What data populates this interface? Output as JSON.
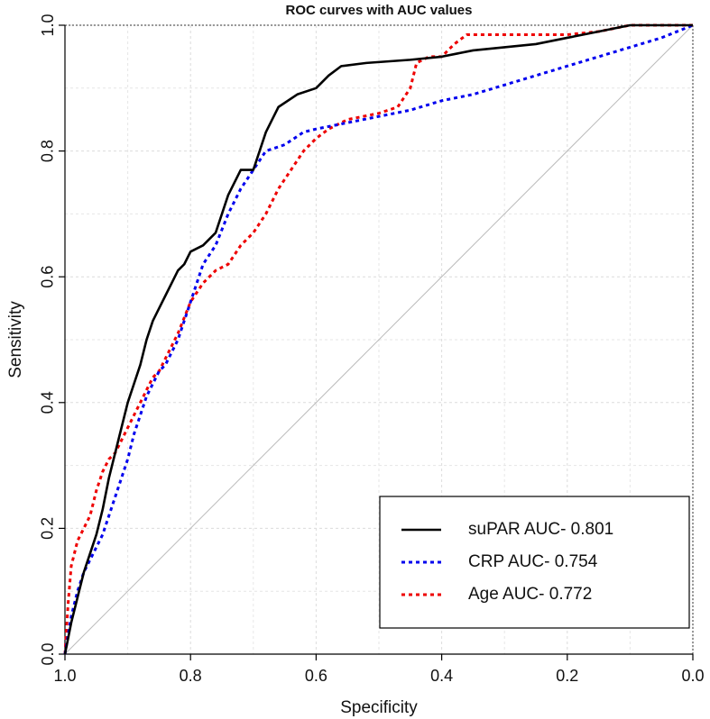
{
  "chart_data": {
    "type": "line",
    "title": "ROC curves with AUC values",
    "xlabel": "Specificity",
    "ylabel": "Sensitivity",
    "xlim": [
      1.0,
      0.0
    ],
    "ylim": [
      0.0,
      1.0
    ],
    "x_ticks": [
      "1.0",
      "0.8",
      "0.6",
      "0.4",
      "0.2",
      "0.0"
    ],
    "x_tick_values": [
      1.0,
      0.8,
      0.6,
      0.4,
      0.2,
      0.0
    ],
    "y_ticks": [
      "0.0",
      "0.2",
      "0.4",
      "0.6",
      "0.8",
      "1.0"
    ],
    "y_tick_values": [
      0.0,
      0.2,
      0.4,
      0.6,
      0.8,
      1.0
    ],
    "grid": true,
    "diagonal_reference": true,
    "legend_position": "bottom-right",
    "series": [
      {
        "name": "suPAR AUC- 0.801",
        "color": "#000000",
        "style": "solid",
        "points": [
          [
            1.0,
            0.0
          ],
          [
            0.99,
            0.05
          ],
          [
            0.98,
            0.09
          ],
          [
            0.97,
            0.13
          ],
          [
            0.96,
            0.16
          ],
          [
            0.95,
            0.19
          ],
          [
            0.94,
            0.23
          ],
          [
            0.93,
            0.28
          ],
          [
            0.92,
            0.32
          ],
          [
            0.91,
            0.36
          ],
          [
            0.9,
            0.4
          ],
          [
            0.89,
            0.43
          ],
          [
            0.88,
            0.46
          ],
          [
            0.87,
            0.5
          ],
          [
            0.86,
            0.53
          ],
          [
            0.85,
            0.55
          ],
          [
            0.84,
            0.57
          ],
          [
            0.83,
            0.59
          ],
          [
            0.82,
            0.61
          ],
          [
            0.81,
            0.62
          ],
          [
            0.8,
            0.64
          ],
          [
            0.78,
            0.65
          ],
          [
            0.76,
            0.67
          ],
          [
            0.75,
            0.7
          ],
          [
            0.74,
            0.73
          ],
          [
            0.72,
            0.77
          ],
          [
            0.7,
            0.77
          ],
          [
            0.69,
            0.8
          ],
          [
            0.68,
            0.83
          ],
          [
            0.67,
            0.85
          ],
          [
            0.66,
            0.87
          ],
          [
            0.63,
            0.89
          ],
          [
            0.6,
            0.9
          ],
          [
            0.58,
            0.92
          ],
          [
            0.56,
            0.935
          ],
          [
            0.52,
            0.94
          ],
          [
            0.45,
            0.945
          ],
          [
            0.4,
            0.95
          ],
          [
            0.35,
            0.96
          ],
          [
            0.3,
            0.965
          ],
          [
            0.25,
            0.97
          ],
          [
            0.2,
            0.98
          ],
          [
            0.15,
            0.99
          ],
          [
            0.1,
            1.0
          ],
          [
            0.0,
            1.0
          ]
        ]
      },
      {
        "name": "CRP AUC- 0.754",
        "color": "#0000ee",
        "style": "dotted",
        "points": [
          [
            1.0,
            0.0
          ],
          [
            0.99,
            0.06
          ],
          [
            0.98,
            0.1
          ],
          [
            0.97,
            0.13
          ],
          [
            0.96,
            0.15
          ],
          [
            0.95,
            0.17
          ],
          [
            0.94,
            0.19
          ],
          [
            0.93,
            0.22
          ],
          [
            0.92,
            0.25
          ],
          [
            0.91,
            0.28
          ],
          [
            0.9,
            0.31
          ],
          [
            0.89,
            0.35
          ],
          [
            0.88,
            0.38
          ],
          [
            0.87,
            0.41
          ],
          [
            0.86,
            0.43
          ],
          [
            0.85,
            0.45
          ],
          [
            0.84,
            0.46
          ],
          [
            0.82,
            0.5
          ],
          [
            0.8,
            0.56
          ],
          [
            0.78,
            0.62
          ],
          [
            0.76,
            0.65
          ],
          [
            0.74,
            0.7
          ],
          [
            0.72,
            0.74
          ],
          [
            0.7,
            0.77
          ],
          [
            0.68,
            0.8
          ],
          [
            0.65,
            0.81
          ],
          [
            0.62,
            0.83
          ],
          [
            0.6,
            0.835
          ],
          [
            0.55,
            0.845
          ],
          [
            0.5,
            0.855
          ],
          [
            0.45,
            0.865
          ],
          [
            0.4,
            0.88
          ],
          [
            0.35,
            0.89
          ],
          [
            0.3,
            0.905
          ],
          [
            0.25,
            0.92
          ],
          [
            0.2,
            0.935
          ],
          [
            0.15,
            0.95
          ],
          [
            0.1,
            0.965
          ],
          [
            0.05,
            0.98
          ],
          [
            0.0,
            1.0
          ]
        ]
      },
      {
        "name": "Age AUC- 0.772",
        "color": "#ee0000",
        "style": "dotted",
        "points": [
          [
            1.0,
            0.0
          ],
          [
            0.995,
            0.08
          ],
          [
            0.99,
            0.14
          ],
          [
            0.98,
            0.18
          ],
          [
            0.97,
            0.2
          ],
          [
            0.96,
            0.22
          ],
          [
            0.95,
            0.26
          ],
          [
            0.94,
            0.29
          ],
          [
            0.93,
            0.31
          ],
          [
            0.92,
            0.32
          ],
          [
            0.91,
            0.34
          ],
          [
            0.9,
            0.36
          ],
          [
            0.89,
            0.38
          ],
          [
            0.88,
            0.4
          ],
          [
            0.87,
            0.42
          ],
          [
            0.86,
            0.44
          ],
          [
            0.85,
            0.45
          ],
          [
            0.84,
            0.47
          ],
          [
            0.82,
            0.51
          ],
          [
            0.8,
            0.56
          ],
          [
            0.78,
            0.59
          ],
          [
            0.76,
            0.61
          ],
          [
            0.74,
            0.62
          ],
          [
            0.72,
            0.65
          ],
          [
            0.7,
            0.67
          ],
          [
            0.68,
            0.7
          ],
          [
            0.66,
            0.74
          ],
          [
            0.64,
            0.77
          ],
          [
            0.62,
            0.8
          ],
          [
            0.6,
            0.82
          ],
          [
            0.58,
            0.835
          ],
          [
            0.55,
            0.85
          ],
          [
            0.5,
            0.86
          ],
          [
            0.47,
            0.87
          ],
          [
            0.45,
            0.9
          ],
          [
            0.44,
            0.94
          ],
          [
            0.42,
            0.95
          ],
          [
            0.4,
            0.95
          ],
          [
            0.38,
            0.97
          ],
          [
            0.36,
            0.985
          ],
          [
            0.3,
            0.985
          ],
          [
            0.2,
            0.985
          ],
          [
            0.15,
            0.99
          ],
          [
            0.1,
            1.0
          ],
          [
            0.0,
            1.0
          ]
        ]
      }
    ]
  }
}
